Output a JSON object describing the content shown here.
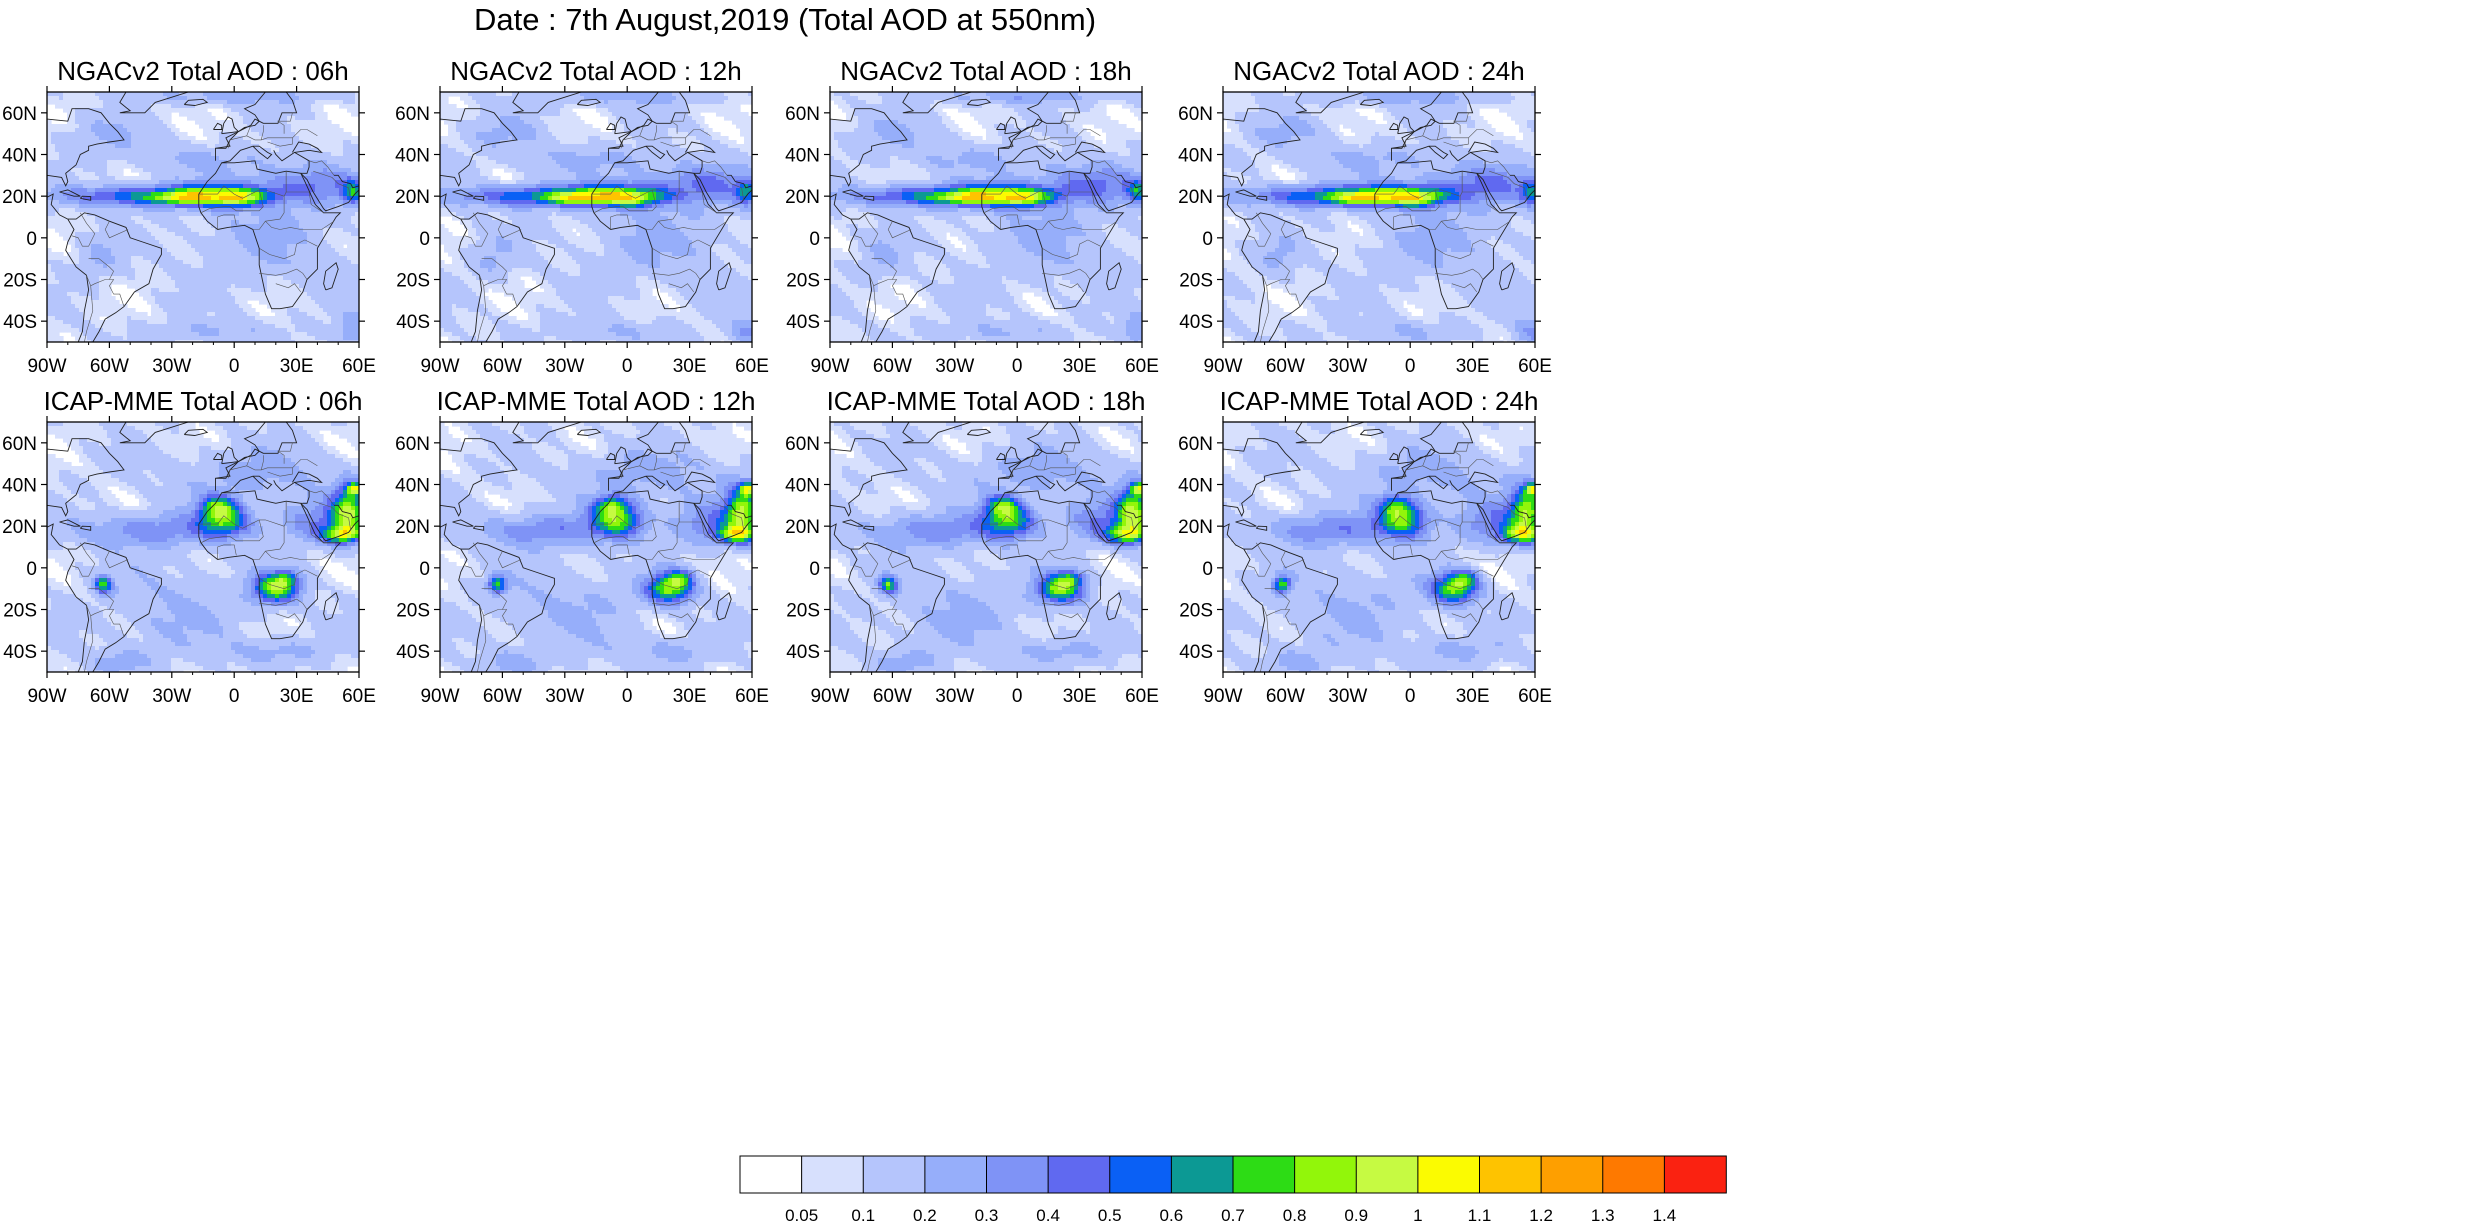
{
  "title": "Date : 7th August,2019 (Total AOD at 550nm)",
  "panels": [
    {
      "title": "NGACv2 Total AOD : 06h",
      "model": "NGACv2",
      "lead": "06h"
    },
    {
      "title": "NGACv2 Total AOD : 12h",
      "model": "NGACv2",
      "lead": "12h"
    },
    {
      "title": "NGACv2 Total AOD : 18h",
      "model": "NGACv2",
      "lead": "18h"
    },
    {
      "title": "NGACv2 Total AOD : 24h",
      "model": "NGACv2",
      "lead": "24h"
    },
    {
      "title": "ICAP-MME Total AOD : 06h",
      "model": "ICAP-MME",
      "lead": "06h"
    },
    {
      "title": "ICAP-MME Total AOD : 12h",
      "model": "ICAP-MME",
      "lead": "12h"
    },
    {
      "title": "ICAP-MME Total AOD : 18h",
      "model": "ICAP-MME",
      "lead": "18h"
    },
    {
      "title": "ICAP-MME Total AOD : 24h",
      "model": "ICAP-MME",
      "lead": "24h"
    }
  ],
  "axes": {
    "lat_labels": [
      "60N",
      "40N",
      "20N",
      "0",
      "20S",
      "40S"
    ],
    "lat_values": [
      60,
      40,
      20,
      0,
      -20,
      -40
    ],
    "lon_labels": [
      "90W",
      "60W",
      "30W",
      "0",
      "30E",
      "60E"
    ],
    "lon_values": [
      -90,
      -60,
      -30,
      0,
      30,
      60
    ],
    "lon_range": [
      -90,
      60
    ],
    "lat_range": [
      -50,
      70
    ]
  },
  "colorbar": {
    "labels": [
      "0.05",
      "0.1",
      "0.2",
      "0.3",
      "0.4",
      "0.5",
      "0.6",
      "0.7",
      "0.8",
      "0.9",
      "1",
      "1.1",
      "1.2",
      "1.3",
      "1.4"
    ],
    "colors": [
      "#ffffff",
      "#d7e0fd",
      "#b5c5fc",
      "#96aefa",
      "#7f93f6",
      "#6069f0",
      "#0a60f5",
      "#0c9994",
      "#2ddc15",
      "#92f60a",
      "#c6fa42",
      "#fbfb01",
      "#fec300",
      "#fe9f00",
      "#fe7900",
      "#fa2211"
    ]
  }
}
